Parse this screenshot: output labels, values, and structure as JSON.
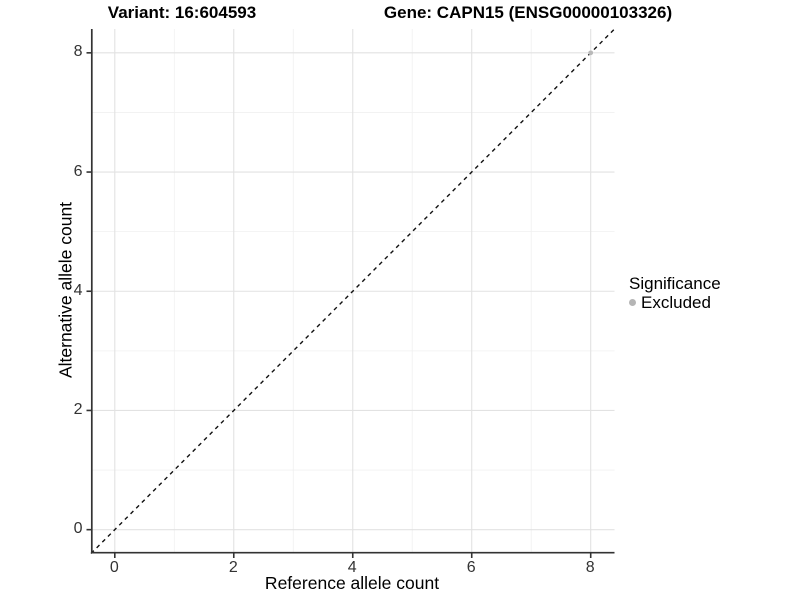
{
  "figure": {
    "title_left": "Variant: 16:604593",
    "title_right": "Gene: CAPN15 (ENSG00000103326)"
  },
  "chart_data": {
    "type": "scatter",
    "title": "Variant: 16:604593   Gene: CAPN15 (ENSG00000103326)",
    "xlabel": "Reference allele count",
    "ylabel": "Alternative allele count",
    "xlim": [
      -0.4,
      8.4
    ],
    "ylim": [
      -0.4,
      8.4
    ],
    "x_ticks": [
      0,
      2,
      4,
      6,
      8
    ],
    "y_ticks": [
      0,
      2,
      4,
      6,
      8
    ],
    "x_minor_ticks": [
      1,
      3,
      5,
      7
    ],
    "y_minor_ticks": [
      1,
      3,
      5,
      7
    ],
    "grid": "major+minor",
    "series": [
      {
        "name": "Excluded",
        "points": [
          {
            "x": 8,
            "y": 8
          }
        ],
        "color": "#b9b9b9"
      }
    ],
    "reference_line": {
      "kind": "identity",
      "slope": 1,
      "intercept": 0,
      "style": "dashed",
      "color": "#111111"
    },
    "legend": {
      "title": "Significance",
      "position": "right",
      "items": [
        {
          "label": "Excluded",
          "color": "#b5b5b5"
        }
      ]
    }
  },
  "colors": {
    "background": "#ffffff",
    "axis_line": "#333333",
    "grid_major": "#e2e2e2",
    "grid_minor": "#f0f0f0",
    "tick_label": "#333333",
    "point": "#b9b9b9"
  }
}
